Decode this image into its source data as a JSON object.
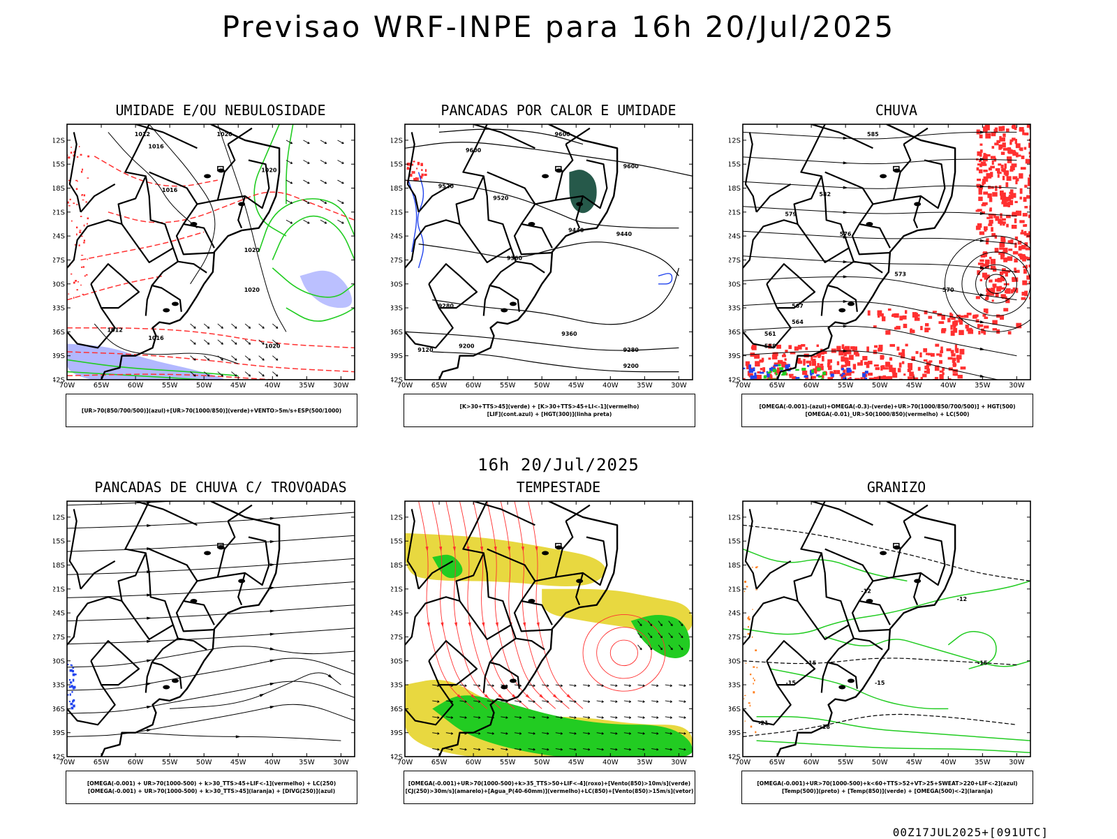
{
  "title": "Previsao WRF-INPE  para 16h 20/Jul/2025",
  "middle_title": "16h 20/Jul/2025",
  "footer": "00Z17JUL2025+[091UTC]",
  "axes": {
    "lat_ticks": [
      "12S",
      "15S",
      "18S",
      "21S",
      "24S",
      "27S",
      "30S",
      "33S",
      "36S",
      "39S",
      "42S"
    ],
    "lon_ticks": [
      "70W",
      "65W",
      "60W",
      "55W",
      "50W",
      "45W",
      "40W",
      "35W",
      "30W"
    ]
  },
  "colors": {
    "red": "#ff3030",
    "green": "#22cc22",
    "blue": "#2244ee",
    "lavender": "#aab0ff",
    "yellow": "#e8d840",
    "darkgreen": "#1a5040",
    "orange": "#ff8020"
  },
  "panels": [
    {
      "id": "umidade",
      "title": "UMIDADE E/OU NEBULOSIDADE",
      "legend": [
        "[UR>70(850/700/500)](azul)+[UR>70(1000/850)](verde)+VENTO>5m/s+ESP(500/1000)"
      ],
      "contour_labels": [
        "1012",
        "1016",
        "1020",
        "1020",
        "1016",
        "1020",
        "1020",
        "1012",
        "1016",
        "1020"
      ]
    },
    {
      "id": "pancadas-calor",
      "title": "PANCADAS POR CALOR E UMIDADE",
      "legend": [
        "[K>30+TTS>45](verde) + [K>30+TTS>45+LI<-1](vermelho)",
        "[LIF](cont.azul) + [HGT(300)](linha preta)"
      ],
      "contour_labels": [
        "9600",
        "9600",
        "9600",
        "9520",
        "9520",
        "9440",
        "9440",
        "9360",
        "9360",
        "9280",
        "9200",
        "9280",
        "9200",
        "9120"
      ]
    },
    {
      "id": "chuva",
      "title": "CHUVA",
      "legend": [
        "[OMEGA(-0.001)-(azul)+OMEGA(-0.3)-(verde)+UR>70(1000/850/700/500)] + HGT(500)",
        "[OMEGA(-0.01)_UR>50(1000/850)(vermelho) + LC(500)"
      ],
      "contour_labels": [
        "585",
        "582",
        "579",
        "576",
        "573",
        "570",
        "567",
        "564",
        "561",
        "558"
      ]
    },
    {
      "id": "trovoadas",
      "title": "PANCADAS DE CHUVA C/ TROVOADAS",
      "legend": [
        "[OMEGA(-0.001) + UR>70(1000-500) + k>30_TTS>45+LIF<-1](vermelho) + LC(250)",
        "[OMEGA(-0.001) + UR>70(1000-500) + k>30_TTS>45](laranja) + [DIVG(250)](azul)"
      ],
      "contour_labels": []
    },
    {
      "id": "tempestade",
      "title": "TEMPESTADE",
      "legend": [
        "[OMEGA(-0.001)+UR>70(1000-500)+k>35_TTS>50+LIF<-4](roxo)+[Vento(850)>10m/s](verde)",
        "[CJ(250)>30m/s](amarelo)+[Agua_P(40-60mm)](vermelho)+LC(850)+[Vento(850)>15m/s](vetor)"
      ],
      "contour_labels": []
    },
    {
      "id": "granizo",
      "title": "GRANIZO",
      "legend": [
        "[OMEGA(-0.001)+UR>70(1000-500)+k<60+TTS>52+VT>25+SWEAT>220+LIF<-2](azul)",
        "[Temp(500)](preto) + [Temp(850)](verde) + [OMEGA(500)<-2](laranja)"
      ],
      "contour_labels": [
        "-12",
        "-12",
        "-15",
        "-15",
        "-15",
        "-18",
        "-21",
        "-15"
      ]
    }
  ]
}
